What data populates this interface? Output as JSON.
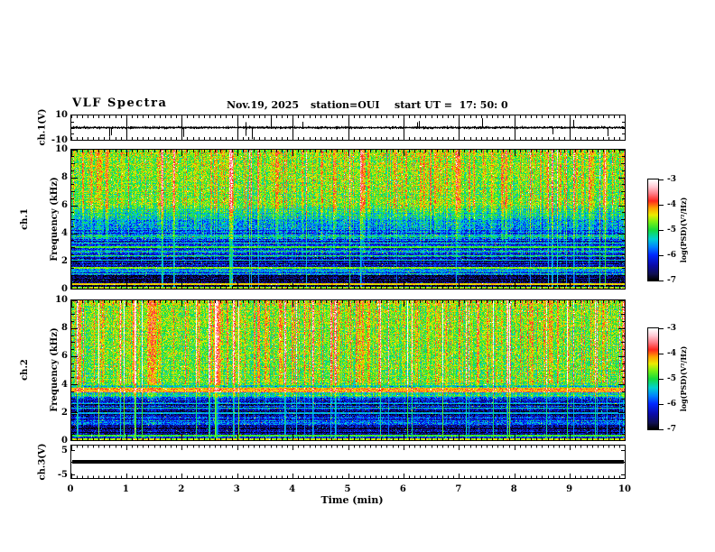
{
  "title": {
    "main": "VLF Spectra",
    "date": "Nov.19, 2025",
    "station": "station=OUI",
    "start_ut": "start UT =  17: 50: 0"
  },
  "axes_labels": {
    "ch1_wave": "ch.1(V)",
    "ch1_spec": [
      "ch.1",
      "Frequency (kHz)"
    ],
    "ch2_spec": [
      "ch.2",
      "Frequency (kHz)"
    ],
    "ch3_wave": "ch.3(V)",
    "time": "Time (min)",
    "colorbar": "log(PSD)(V²/Hz)"
  },
  "time_axis": {
    "label": "Time (min)",
    "ticks": [
      0,
      1,
      2,
      3,
      4,
      5,
      6,
      7,
      8,
      9,
      10
    ],
    "range": [
      0,
      10
    ],
    "minor_tick_step_min": 0.1
  },
  "colors": {
    "frame": "#000000",
    "background": "#ffffff",
    "trace": "#000000"
  },
  "colormap": [
    [
      0.0,
      0,
      0,
      0
    ],
    [
      0.06,
      15,
      15,
      80
    ],
    [
      0.15,
      10,
      10,
      170
    ],
    [
      0.25,
      0,
      40,
      255
    ],
    [
      0.33,
      0,
      130,
      255
    ],
    [
      0.41,
      0,
      210,
      210
    ],
    [
      0.5,
      20,
      220,
      60
    ],
    [
      0.58,
      120,
      240,
      20
    ],
    [
      0.65,
      235,
      235,
      0
    ],
    [
      0.72,
      255,
      160,
      0
    ],
    [
      0.79,
      255,
      40,
      30
    ],
    [
      0.86,
      255,
      120,
      130
    ],
    [
      0.93,
      255,
      200,
      210
    ],
    [
      1.0,
      255,
      255,
      255
    ]
  ],
  "chart_data": [
    {
      "id": "ch1_waveform",
      "type": "line",
      "ylabel": "ch.1(V)",
      "y_range": [
        -10,
        10
      ],
      "y_ticks": [
        10,
        -10
      ],
      "x_range": [
        0,
        10
      ],
      "gridlines": "vertical black line at every minute",
      "description": "Noisy broadband time series centered on 0 V (about ±1 V) with intermittent impulsive spikes reaching -10 V and up to +8 V.",
      "model": {
        "seed": 911,
        "base_amp": 0.85,
        "spike_down_prob": 0.012,
        "spike_up_prob": 0.006,
        "spike_down_min": 3,
        "spike_down_max": 9.5,
        "spike_up_min": 2.5,
        "spike_up_max": 7.5
      }
    },
    {
      "id": "ch1_spectrogram",
      "type": "heatmap",
      "ylabel": "ch.1 Frequency (kHz)",
      "y_range": [
        0,
        10
      ],
      "y_ticks": [
        10,
        8,
        6,
        4,
        2,
        0
      ],
      "x_range": [
        0,
        10
      ],
      "value_range": [
        -7,
        -3
      ],
      "colorbar_ticks": [
        -3,
        -4,
        -5,
        -6,
        -7
      ],
      "colorbar_label": "log(PSD)(V²/Hz)",
      "description": "Green background (~-5) above 5 kHz with dense yellow/orange/red vertical sferic streaks; blue patchy 3.5-5 kHz; dark blue 1.5-3.5 kHz crossed by thin horizontal harmonic lines; very dark band 0.4-1 kHz; bright narrow lines near 0.35 and 1.5 kHz and at the bottom edge.",
      "model": {
        "seed": 20251119,
        "noise": 0.5,
        "strong_prob": 0.05,
        "strong_min": 1.0,
        "strong_max": 1.8,
        "med_prob": 0.32,
        "med_min": 0.35,
        "med_max": 1.0,
        "weak_max": 0.35,
        "bands": [
          {
            "f0": 0.0,
            "f1": 0.15,
            "v0": -4.9,
            "v1": -4.9
          },
          {
            "f0": 0.15,
            "f1": 0.3,
            "v0": -6.6,
            "v1": -6.8
          },
          {
            "f0": 0.3,
            "f1": 1.0,
            "v0": -6.9,
            "v1": -6.9
          },
          {
            "f0": 1.0,
            "f1": 1.45,
            "v0": -5.9,
            "v1": -5.9
          },
          {
            "f0": 1.45,
            "f1": 2.3,
            "v0": -6.6,
            "v1": -6.6
          },
          {
            "f0": 2.3,
            "f1": 3.6,
            "v0": -6.3,
            "v1": -6.1
          },
          {
            "f0": 3.6,
            "f1": 5.0,
            "v0": -6.0,
            "v1": -5.8
          },
          {
            "f0": 5.0,
            "f1": 6.0,
            "v0": -5.6,
            "v1": -5.2
          },
          {
            "f0": 6.0,
            "f1": 10.0,
            "v0": -5.1,
            "v1": -4.9
          }
        ],
        "lines": [
          {
            "f": 0.08,
            "w": 0.09,
            "v": -4.7
          },
          {
            "f": 0.35,
            "w": 0.05,
            "v": -4.3
          },
          {
            "f": 1.3,
            "w": 0.07,
            "v": -5.7
          },
          {
            "f": 1.5,
            "w": 0.05,
            "v": -4.7
          },
          {
            "f": 2.05,
            "w": 0.05,
            "v": -5.4
          },
          {
            "f": 2.4,
            "w": 0.04,
            "v": -5.0
          },
          {
            "f": 2.7,
            "w": 0.04,
            "v": -5.1
          },
          {
            "f": 3.0,
            "w": 0.04,
            "v": -4.9
          },
          {
            "f": 3.3,
            "w": 0.04,
            "v": -5.2
          },
          {
            "f": 3.75,
            "w": 0.04,
            "v": -5.1
          }
        ],
        "gains": [
          {
            "f0": 0.0,
            "f1": 0.5,
            "g": 0.25
          },
          {
            "f0": 0.5,
            "f1": 2.0,
            "g": 0.3
          },
          {
            "f0": 2.0,
            "f1": 3.5,
            "g": 0.45
          },
          {
            "f0": 3.5,
            "f1": 5.5,
            "g": 0.7
          },
          {
            "f0": 5.5,
            "f1": 10.0,
            "g": 1.0
          }
        ],
        "stripe_amp_low": 0.45,
        "stripe_amp_high": 0.15
      }
    },
    {
      "id": "ch2_spectrogram",
      "type": "heatmap",
      "ylabel": "ch.2 Frequency (kHz)",
      "y_range": [
        0,
        10
      ],
      "y_ticks": [
        10,
        8,
        6,
        4,
        2,
        0
      ],
      "x_range": [
        0,
        10
      ],
      "value_range": [
        -7,
        -3
      ],
      "colorbar_ticks": [
        -3,
        -4,
        -5,
        -6,
        -7
      ],
      "colorbar_label": "log(PSD)(V²/Hz)",
      "description": "Green background above 4 kHz with strong red/orange vertical sferic streaks; bright yellow-orange horizontal band near 3.5-3.7 kHz; dark blue striped band 1.7-3 kHz; very dark 0.5-1.1 kHz; bright mixed line at the bottom edge.",
      "model": {
        "seed": 777333,
        "noise": 0.5,
        "strong_prob": 0.07,
        "strong_min": 1.1,
        "strong_max": 2.0,
        "med_prob": 0.32,
        "med_min": 0.35,
        "med_max": 1.0,
        "weak_max": 0.35,
        "bands": [
          {
            "f0": 0.0,
            "f1": 0.15,
            "v0": -4.8,
            "v1": -4.8
          },
          {
            "f0": 0.15,
            "f1": 0.5,
            "v0": -6.4,
            "v1": -6.6
          },
          {
            "f0": 0.5,
            "f1": 1.1,
            "v0": -6.8,
            "v1": -6.8
          },
          {
            "f0": 1.1,
            "f1": 1.7,
            "v0": -6.2,
            "v1": -6.2
          },
          {
            "f0": 1.7,
            "f1": 3.1,
            "v0": -6.5,
            "v1": -6.4
          },
          {
            "f0": 3.1,
            "f1": 3.45,
            "v0": -5.6,
            "v1": -5.2
          },
          {
            "f0": 3.45,
            "f1": 3.75,
            "v0": -4.4,
            "v1": -4.4
          },
          {
            "f0": 3.75,
            "f1": 4.1,
            "v0": -5.4,
            "v1": -5.2
          },
          {
            "f0": 4.1,
            "f1": 10.0,
            "v0": -5.1,
            "v1": -4.9
          }
        ],
        "lines": [
          {
            "f": 0.08,
            "w": 0.09,
            "v": -4.6
          },
          {
            "f": 0.35,
            "w": 0.05,
            "v": -4.9
          },
          {
            "f": 1.95,
            "w": 0.05,
            "v": -5.5
          },
          {
            "f": 2.3,
            "w": 0.04,
            "v": -5.3
          },
          {
            "f": 2.65,
            "w": 0.04,
            "v": -5.4
          },
          {
            "f": 3.6,
            "w": 0.14,
            "v": -4.3
          },
          {
            "f": 4.4,
            "w": 0.04,
            "v": -5.2
          }
        ],
        "gains": [
          {
            "f0": 0.0,
            "f1": 1.5,
            "g": 0.35
          },
          {
            "f0": 1.5,
            "f1": 3.0,
            "g": 0.45
          },
          {
            "f0": 3.0,
            "f1": 4.0,
            "g": 0.6
          },
          {
            "f0": 4.0,
            "f1": 10.0,
            "g": 1.1
          }
        ],
        "stripe_amp_low": 0.45,
        "stripe_amp_high": 0.15
      }
    },
    {
      "id": "ch3_waveform",
      "type": "line",
      "ylabel": "ch.3(V)",
      "y_range": [
        -5,
        5
      ],
      "y_ticks": [
        5,
        -5
      ],
      "x_range": [
        0,
        10
      ],
      "constant_value": 0,
      "description": "Flat thick black trace at 0 V for the full 10 minutes (no signal)."
    }
  ]
}
